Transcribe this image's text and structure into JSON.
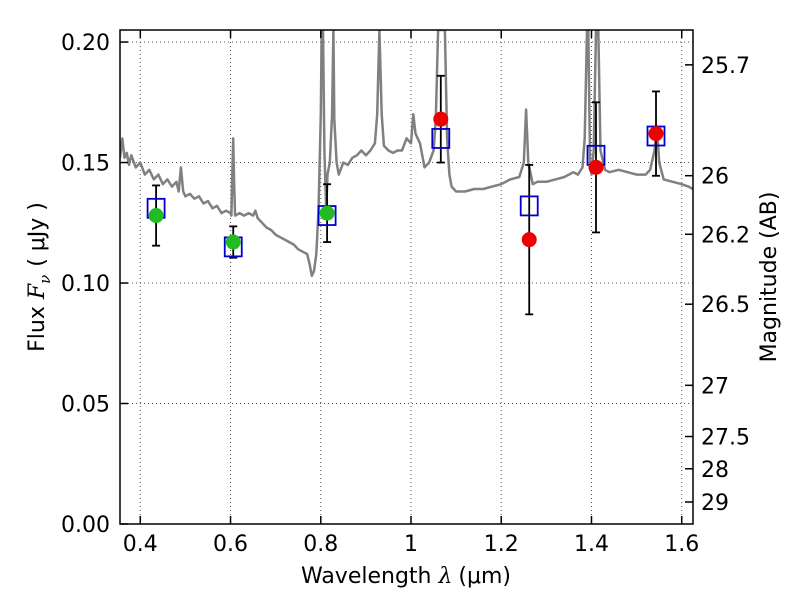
{
  "chart_data": {
    "type": "scatter",
    "xlabel_prefix": "Wavelength ",
    "xlabel_math": "λ",
    "xlabel_unit": "(μm)",
    "ylabel_prefix": "Flux ",
    "ylabel_math": "F",
    "ylabel_sub": "ν",
    "ylabel_unit": "( μJy )",
    "y2label": "Magnitude (AB)",
    "xlim": [
      0.355,
      1.625
    ],
    "ylim": [
      0.0,
      0.205
    ],
    "x_ticks": [
      {
        "value": 0.4,
        "label": "0.4"
      },
      {
        "value": 0.6,
        "label": "0.6"
      },
      {
        "value": 0.8,
        "label": "0.8"
      },
      {
        "value": 1.0,
        "label": "1"
      },
      {
        "value": 1.2,
        "label": "1.2"
      },
      {
        "value": 1.4,
        "label": "1.4"
      },
      {
        "value": 1.6,
        "label": "1.6"
      }
    ],
    "y_ticks": [
      {
        "value": 0.0,
        "label": "0.00"
      },
      {
        "value": 0.05,
        "label": "0.05"
      },
      {
        "value": 0.1,
        "label": "0.10"
      },
      {
        "value": 0.15,
        "label": "0.15"
      },
      {
        "value": 0.2,
        "label": "0.20"
      }
    ],
    "y2_ticks": [
      {
        "value": 25.7,
        "label": "25.7"
      },
      {
        "value": 26.0,
        "label": "26"
      },
      {
        "value": 26.2,
        "label": "26.2"
      },
      {
        "value": 26.5,
        "label": "26.5"
      },
      {
        "value": 27.0,
        "label": "27"
      },
      {
        "value": 27.5,
        "label": "27.5"
      },
      {
        "value": 28.0,
        "label": "28"
      },
      {
        "value": 29.0,
        "label": "29"
      }
    ],
    "grid": true,
    "colors": {
      "spectrum": "#808080",
      "model_box": "#0000cc",
      "optical_point": "#22bb22",
      "nir_point": "#ee0000",
      "errorbar": "#000000"
    },
    "observed_points": [
      {
        "x": 0.435,
        "y": 0.128,
        "err": 0.0125,
        "band": "optical"
      },
      {
        "x": 0.606,
        "y": 0.117,
        "err": 0.0065,
        "band": "optical"
      },
      {
        "x": 0.814,
        "y": 0.129,
        "err": 0.012,
        "band": "optical"
      },
      {
        "x": 1.066,
        "y": 0.168,
        "err": 0.018,
        "band": "nir"
      },
      {
        "x": 1.262,
        "y": 0.118,
        "err": 0.031,
        "band": "nir"
      },
      {
        "x": 1.41,
        "y": 0.148,
        "err": 0.027,
        "band": "nir"
      },
      {
        "x": 1.543,
        "y": 0.162,
        "err": 0.0175,
        "band": "nir"
      }
    ],
    "model_points": [
      {
        "x": 0.435,
        "y": 0.131
      },
      {
        "x": 0.606,
        "y": 0.115
      },
      {
        "x": 0.814,
        "y": 0.128
      },
      {
        "x": 1.066,
        "y": 0.16
      },
      {
        "x": 1.262,
        "y": 0.132
      },
      {
        "x": 1.41,
        "y": 0.153
      },
      {
        "x": 1.543,
        "y": 0.161
      }
    ],
    "spectrum": [
      [
        0.355,
        0.152
      ],
      [
        0.36,
        0.16
      ],
      [
        0.365,
        0.152
      ],
      [
        0.37,
        0.154
      ],
      [
        0.375,
        0.149
      ],
      [
        0.38,
        0.153
      ],
      [
        0.39,
        0.148
      ],
      [
        0.4,
        0.15
      ],
      [
        0.41,
        0.145
      ],
      [
        0.42,
        0.147
      ],
      [
        0.43,
        0.143
      ],
      [
        0.44,
        0.145
      ],
      [
        0.45,
        0.141
      ],
      [
        0.46,
        0.143
      ],
      [
        0.47,
        0.14
      ],
      [
        0.48,
        0.142
      ],
      [
        0.485,
        0.138
      ],
      [
        0.49,
        0.148
      ],
      [
        0.495,
        0.138
      ],
      [
        0.5,
        0.136
      ],
      [
        0.51,
        0.137
      ],
      [
        0.52,
        0.135
      ],
      [
        0.53,
        0.136
      ],
      [
        0.54,
        0.133
      ],
      [
        0.55,
        0.134
      ],
      [
        0.56,
        0.131
      ],
      [
        0.57,
        0.132
      ],
      [
        0.58,
        0.129
      ],
      [
        0.59,
        0.13
      ],
      [
        0.6,
        0.129
      ],
      [
        0.602,
        0.128
      ],
      [
        0.604,
        0.145
      ],
      [
        0.606,
        0.16
      ],
      [
        0.608,
        0.142
      ],
      [
        0.61,
        0.128
      ],
      [
        0.62,
        0.129
      ],
      [
        0.63,
        0.128
      ],
      [
        0.64,
        0.129
      ],
      [
        0.65,
        0.128
      ],
      [
        0.655,
        0.13
      ],
      [
        0.66,
        0.127
      ],
      [
        0.67,
        0.125
      ],
      [
        0.68,
        0.123
      ],
      [
        0.69,
        0.122
      ],
      [
        0.7,
        0.12
      ],
      [
        0.71,
        0.119
      ],
      [
        0.72,
        0.118
      ],
      [
        0.73,
        0.117
      ],
      [
        0.74,
        0.116
      ],
      [
        0.75,
        0.114
      ],
      [
        0.76,
        0.113
      ],
      [
        0.77,
        0.112
      ],
      [
        0.775,
        0.108
      ],
      [
        0.78,
        0.103
      ],
      [
        0.785,
        0.105
      ],
      [
        0.79,
        0.112
      ],
      [
        0.795,
        0.13
      ],
      [
        0.8,
        0.17
      ],
      [
        0.802,
        0.205
      ],
      [
        0.805,
        0.205
      ],
      [
        0.808,
        0.155
      ],
      [
        0.812,
        0.13
      ],
      [
        0.815,
        0.145
      ],
      [
        0.82,
        0.15
      ],
      [
        0.825,
        0.17
      ],
      [
        0.828,
        0.205
      ],
      [
        0.83,
        0.168
      ],
      [
        0.835,
        0.15
      ],
      [
        0.84,
        0.145
      ],
      [
        0.85,
        0.15
      ],
      [
        0.86,
        0.149
      ],
      [
        0.87,
        0.152
      ],
      [
        0.88,
        0.153
      ],
      [
        0.89,
        0.155
      ],
      [
        0.9,
        0.153
      ],
      [
        0.91,
        0.155
      ],
      [
        0.92,
        0.158
      ],
      [
        0.925,
        0.17
      ],
      [
        0.93,
        0.205
      ],
      [
        0.935,
        0.17
      ],
      [
        0.94,
        0.157
      ],
      [
        0.95,
        0.155
      ],
      [
        0.96,
        0.154
      ],
      [
        0.97,
        0.155
      ],
      [
        0.98,
        0.155
      ],
      [
        0.99,
        0.16
      ],
      [
        1.0,
        0.158
      ],
      [
        1.005,
        0.17
      ],
      [
        1.01,
        0.162
      ],
      [
        1.02,
        0.158
      ],
      [
        1.03,
        0.148
      ],
      [
        1.04,
        0.15
      ],
      [
        1.05,
        0.155
      ],
      [
        1.055,
        0.168
      ],
      [
        1.06,
        0.205
      ],
      [
        1.065,
        0.205
      ],
      [
        1.075,
        0.205
      ],
      [
        1.08,
        0.16
      ],
      [
        1.085,
        0.145
      ],
      [
        1.09,
        0.14
      ],
      [
        1.1,
        0.138
      ],
      [
        1.12,
        0.138
      ],
      [
        1.14,
        0.139
      ],
      [
        1.16,
        0.139
      ],
      [
        1.18,
        0.14
      ],
      [
        1.2,
        0.141
      ],
      [
        1.22,
        0.143
      ],
      [
        1.24,
        0.144
      ],
      [
        1.25,
        0.15
      ],
      [
        1.255,
        0.172
      ],
      [
        1.26,
        0.15
      ],
      [
        1.27,
        0.141
      ],
      [
        1.28,
        0.142
      ],
      [
        1.3,
        0.142
      ],
      [
        1.32,
        0.143
      ],
      [
        1.34,
        0.144
      ],
      [
        1.36,
        0.146
      ],
      [
        1.37,
        0.145
      ],
      [
        1.38,
        0.148
      ],
      [
        1.385,
        0.16
      ],
      [
        1.39,
        0.205
      ],
      [
        1.393,
        0.205
      ],
      [
        1.397,
        0.15
      ],
      [
        1.4,
        0.145
      ],
      [
        1.405,
        0.155
      ],
      [
        1.41,
        0.205
      ],
      [
        1.415,
        0.205
      ],
      [
        1.42,
        0.155
      ],
      [
        1.43,
        0.147
      ],
      [
        1.44,
        0.146
      ],
      [
        1.46,
        0.147
      ],
      [
        1.48,
        0.146
      ],
      [
        1.5,
        0.145
      ],
      [
        1.52,
        0.145
      ],
      [
        1.53,
        0.147
      ],
      [
        1.54,
        0.155
      ],
      [
        1.545,
        0.165
      ],
      [
        1.55,
        0.15
      ],
      [
        1.56,
        0.143
      ],
      [
        1.58,
        0.142
      ],
      [
        1.6,
        0.141
      ],
      [
        1.615,
        0.14
      ],
      [
        1.625,
        0.139
      ]
    ]
  }
}
